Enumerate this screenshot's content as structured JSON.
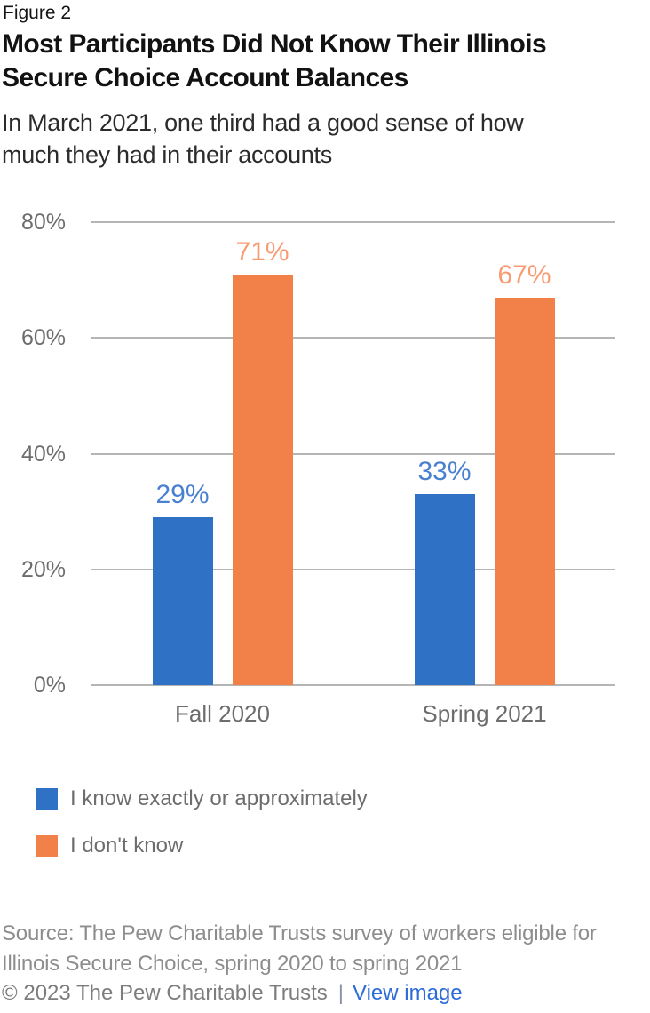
{
  "figure_label": "Figure 2",
  "title_lines": [
    "Most Participants Did Not Know Their Illinois",
    "Secure Choice Account Balances"
  ],
  "subtitle_lines": [
    "In March 2021, one third had a good sense of how",
    "much they had in their accounts"
  ],
  "chart_data": {
    "type": "bar",
    "categories": [
      "Fall 2020",
      "Spring 2021"
    ],
    "series": [
      {
        "name": "I know exactly or approximately",
        "values": [
          29,
          33
        ],
        "color": "#2e71c5",
        "label_color": "#4a80d2"
      },
      {
        "name": "I don't know",
        "values": [
          71,
          67
        ],
        "color": "#f28049",
        "label_color": "#f89b73"
      }
    ],
    "unit": "%",
    "ylim": [
      0,
      80
    ],
    "yticks": [
      "80%",
      "60%",
      "40%",
      "20%",
      "0%"
    ],
    "grid": true,
    "gridline_color": "#b5b5b5",
    "axis_text_color": "#6d6d6d",
    "legend_position": "bottom-left",
    "value_labels_shown": true
  },
  "legend": {
    "items": [
      {
        "label": "I know exactly or approximately",
        "color": "#2e71c5"
      },
      {
        "label": "I don't know",
        "color": "#f28049"
      }
    ]
  },
  "source_lines": [
    "Source: The Pew Charitable Trusts survey of workers eligible for",
    "Illinois Secure Choice, spring 2020 to spring 2021"
  ],
  "footer": {
    "copyright": "© 2023 The Pew Charitable Trusts",
    "separator": "|",
    "link_label": "View image"
  }
}
